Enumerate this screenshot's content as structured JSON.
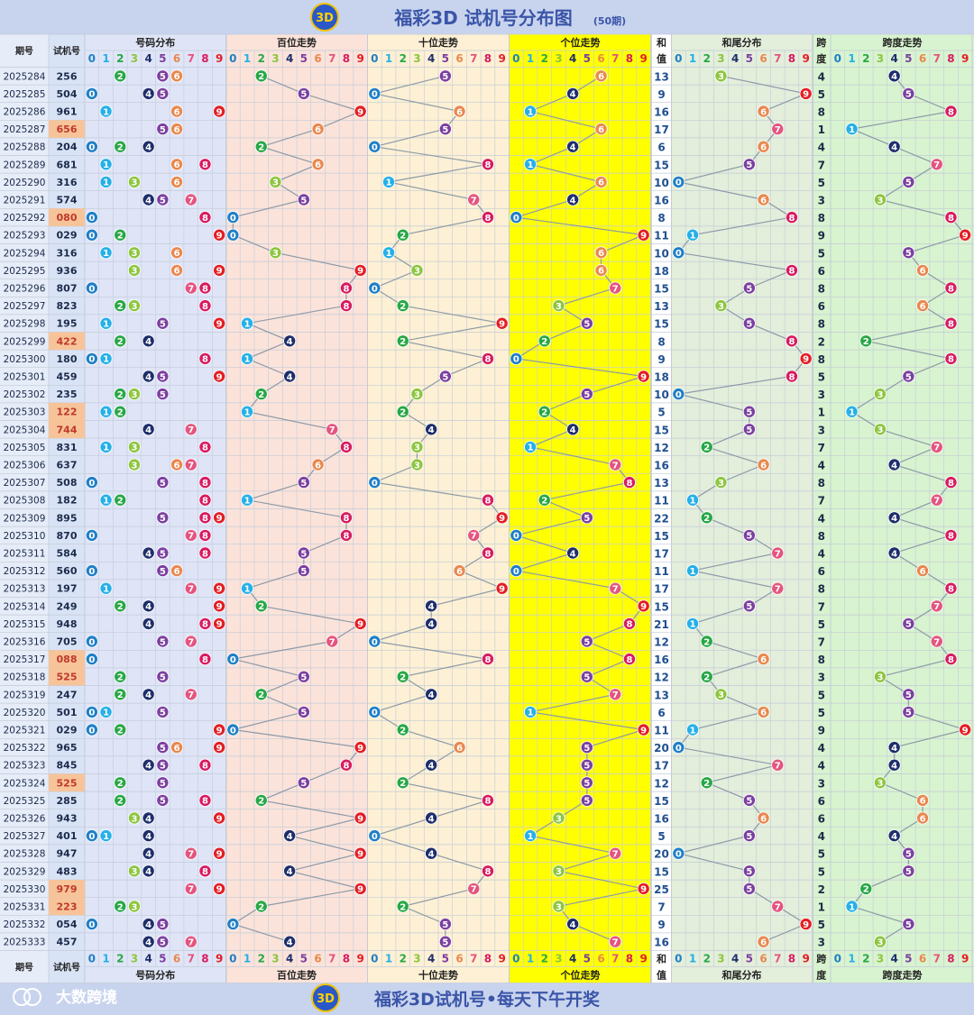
{
  "title": "福彩3D 试机号分布图",
  "subtitle": "(50期)",
  "footer_text": "福彩3D试机号•每天下午开奖",
  "watermark": "大数跨境",
  "logo_text": "3D",
  "headers": {
    "period": "期号",
    "trial": "试机号",
    "dist": "号码分布",
    "hundreds": "百位走势",
    "tens": "十位走势",
    "units": "个位走势",
    "sum_top": "和",
    "sum_bottom": "值",
    "tail": "和尾分布",
    "span_top": "跨",
    "span_bottom": "度",
    "span_trend": "跨度走势"
  },
  "digits": [
    "0",
    "1",
    "2",
    "3",
    "4",
    "5",
    "6",
    "7",
    "8",
    "9"
  ],
  "colors": {
    "title_bg": "#c8d4ee",
    "title_text": "#3b55a8",
    "period_bg": "#e6ecf8",
    "trial_bg": "#d9e3f6",
    "highlight_bg": "#f7c49a",
    "highlight_text": "#c0392b",
    "dist_bg": "#dfe5f7",
    "hundreds_bg": "#fbe3da",
    "tens_bg": "#fdf0d4",
    "units_bg": "#ffff00",
    "sum_bg": "#ffffff",
    "tail_bg": "#e3eedb",
    "span_bg": "#d8f3cf",
    "grid": "#c3cbd8",
    "line": "#8d9aa8",
    "digit_colors": [
      "#1f7fc6",
      "#25b0e8",
      "#27a845",
      "#8dc63f",
      "#1e2e6b",
      "#7b3fa0",
      "#e9884e",
      "#e4547f",
      "#d81b60",
      "#e31e24"
    ]
  },
  "chart_data": {
    "type": "table",
    "rows": [
      {
        "period": "2025284",
        "trial": "256",
        "pair": false,
        "sum": 13,
        "span": 4
      },
      {
        "period": "2025285",
        "trial": "504",
        "pair": false,
        "sum": 9,
        "span": 5
      },
      {
        "period": "2025286",
        "trial": "961",
        "pair": false,
        "sum": 16,
        "span": 8
      },
      {
        "period": "2025287",
        "trial": "656",
        "pair": true,
        "sum": 17,
        "span": 1
      },
      {
        "period": "2025288",
        "trial": "204",
        "pair": false,
        "sum": 6,
        "span": 4
      },
      {
        "period": "2025289",
        "trial": "681",
        "pair": false,
        "sum": 15,
        "span": 7
      },
      {
        "period": "2025290",
        "trial": "316",
        "pair": false,
        "sum": 10,
        "span": 5
      },
      {
        "period": "2025291",
        "trial": "574",
        "pair": false,
        "sum": 16,
        "span": 3
      },
      {
        "period": "2025292",
        "trial": "080",
        "pair": true,
        "sum": 8,
        "span": 8
      },
      {
        "period": "2025293",
        "trial": "029",
        "pair": false,
        "sum": 11,
        "span": 9
      },
      {
        "period": "2025294",
        "trial": "316",
        "pair": false,
        "sum": 10,
        "span": 5
      },
      {
        "period": "2025295",
        "trial": "936",
        "pair": false,
        "sum": 18,
        "span": 6
      },
      {
        "period": "2025296",
        "trial": "807",
        "pair": false,
        "sum": 15,
        "span": 8
      },
      {
        "period": "2025297",
        "trial": "823",
        "pair": false,
        "sum": 13,
        "span": 6
      },
      {
        "period": "2025298",
        "trial": "195",
        "pair": false,
        "sum": 15,
        "span": 8
      },
      {
        "period": "2025299",
        "trial": "422",
        "pair": true,
        "sum": 8,
        "span": 2
      },
      {
        "period": "2025300",
        "trial": "180",
        "pair": false,
        "sum": 9,
        "span": 8
      },
      {
        "period": "2025301",
        "trial": "459",
        "pair": false,
        "sum": 18,
        "span": 5
      },
      {
        "period": "2025302",
        "trial": "235",
        "pair": false,
        "sum": 10,
        "span": 3
      },
      {
        "period": "2025303",
        "trial": "122",
        "pair": true,
        "sum": 5,
        "span": 1
      },
      {
        "period": "2025304",
        "trial": "744",
        "pair": true,
        "sum": 15,
        "span": 3
      },
      {
        "period": "2025305",
        "trial": "831",
        "pair": false,
        "sum": 12,
        "span": 7
      },
      {
        "period": "2025306",
        "trial": "637",
        "pair": false,
        "sum": 16,
        "span": 4
      },
      {
        "period": "2025307",
        "trial": "508",
        "pair": false,
        "sum": 13,
        "span": 8
      },
      {
        "period": "2025308",
        "trial": "182",
        "pair": false,
        "sum": 11,
        "span": 7
      },
      {
        "period": "2025309",
        "trial": "895",
        "pair": false,
        "sum": 22,
        "span": 4
      },
      {
        "period": "2025310",
        "trial": "870",
        "pair": false,
        "sum": 15,
        "span": 8
      },
      {
        "period": "2025311",
        "trial": "584",
        "pair": false,
        "sum": 17,
        "span": 4
      },
      {
        "period": "2025312",
        "trial": "560",
        "pair": false,
        "sum": 11,
        "span": 6
      },
      {
        "period": "2025313",
        "trial": "197",
        "pair": false,
        "sum": 17,
        "span": 8
      },
      {
        "period": "2025314",
        "trial": "249",
        "pair": false,
        "sum": 15,
        "span": 7
      },
      {
        "period": "2025315",
        "trial": "948",
        "pair": false,
        "sum": 21,
        "span": 5
      },
      {
        "period": "2025316",
        "trial": "705",
        "pair": false,
        "sum": 12,
        "span": 7
      },
      {
        "period": "2025317",
        "trial": "088",
        "pair": true,
        "sum": 16,
        "span": 8
      },
      {
        "period": "2025318",
        "trial": "525",
        "pair": true,
        "sum": 12,
        "span": 3
      },
      {
        "period": "2025319",
        "trial": "247",
        "pair": false,
        "sum": 13,
        "span": 5
      },
      {
        "period": "2025320",
        "trial": "501",
        "pair": false,
        "sum": 6,
        "span": 5
      },
      {
        "period": "2025321",
        "trial": "029",
        "pair": false,
        "sum": 11,
        "span": 9
      },
      {
        "period": "2025322",
        "trial": "965",
        "pair": false,
        "sum": 20,
        "span": 4
      },
      {
        "period": "2025323",
        "trial": "845",
        "pair": false,
        "sum": 17,
        "span": 4
      },
      {
        "period": "2025324",
        "trial": "525",
        "pair": true,
        "sum": 12,
        "span": 3
      },
      {
        "period": "2025325",
        "trial": "285",
        "pair": false,
        "sum": 15,
        "span": 6
      },
      {
        "period": "2025326",
        "trial": "943",
        "pair": false,
        "sum": 16,
        "span": 6
      },
      {
        "period": "2025327",
        "trial": "401",
        "pair": false,
        "sum": 5,
        "span": 4
      },
      {
        "period": "2025328",
        "trial": "947",
        "pair": false,
        "sum": 20,
        "span": 5
      },
      {
        "period": "2025329",
        "trial": "483",
        "pair": false,
        "sum": 15,
        "span": 5
      },
      {
        "period": "2025330",
        "trial": "979",
        "pair": true,
        "sum": 25,
        "span": 2
      },
      {
        "period": "2025331",
        "trial": "223",
        "pair": true,
        "sum": 7,
        "span": 1
      },
      {
        "period": "2025332",
        "trial": "054",
        "pair": false,
        "sum": 9,
        "span": 5
      },
      {
        "period": "2025333",
        "trial": "457",
        "pair": false,
        "sum": 16,
        "span": 3
      }
    ]
  }
}
